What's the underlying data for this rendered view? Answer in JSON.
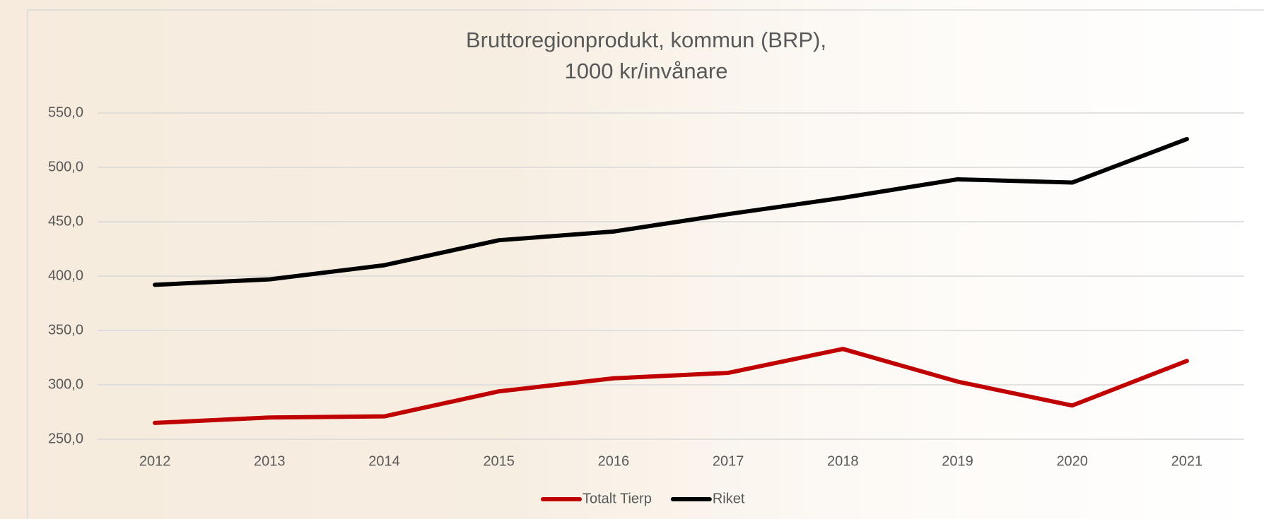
{
  "chart_data": {
    "type": "line",
    "title": [
      "Bruttoregionprodukt, kommun (BRP),",
      "1000 kr/invånare"
    ],
    "categories": [
      "2012",
      "2013",
      "2014",
      "2015",
      "2016",
      "2017",
      "2018",
      "2019",
      "2020",
      "2021"
    ],
    "series": [
      {
        "name": "Totalt Tierp",
        "color": "#c00000",
        "values": [
          265,
          270,
          271,
          294,
          306,
          311,
          333,
          303,
          281,
          322
        ]
      },
      {
        "name": "Riket",
        "color": "#000000",
        "values": [
          392,
          397,
          410,
          433,
          441,
          457,
          472,
          489,
          486,
          526
        ]
      }
    ],
    "ylim": [
      250,
      550
    ],
    "yticks": [
      {
        "value": 250,
        "label": "250,0"
      },
      {
        "value": 300,
        "label": "300,0"
      },
      {
        "value": 350,
        "label": "350,0"
      },
      {
        "value": 400,
        "label": "400,0"
      },
      {
        "value": 450,
        "label": "450,0"
      },
      {
        "value": 500,
        "label": "500,0"
      },
      {
        "value": 550,
        "label": "550,0"
      }
    ],
    "grid": true,
    "legend": "bottom"
  }
}
